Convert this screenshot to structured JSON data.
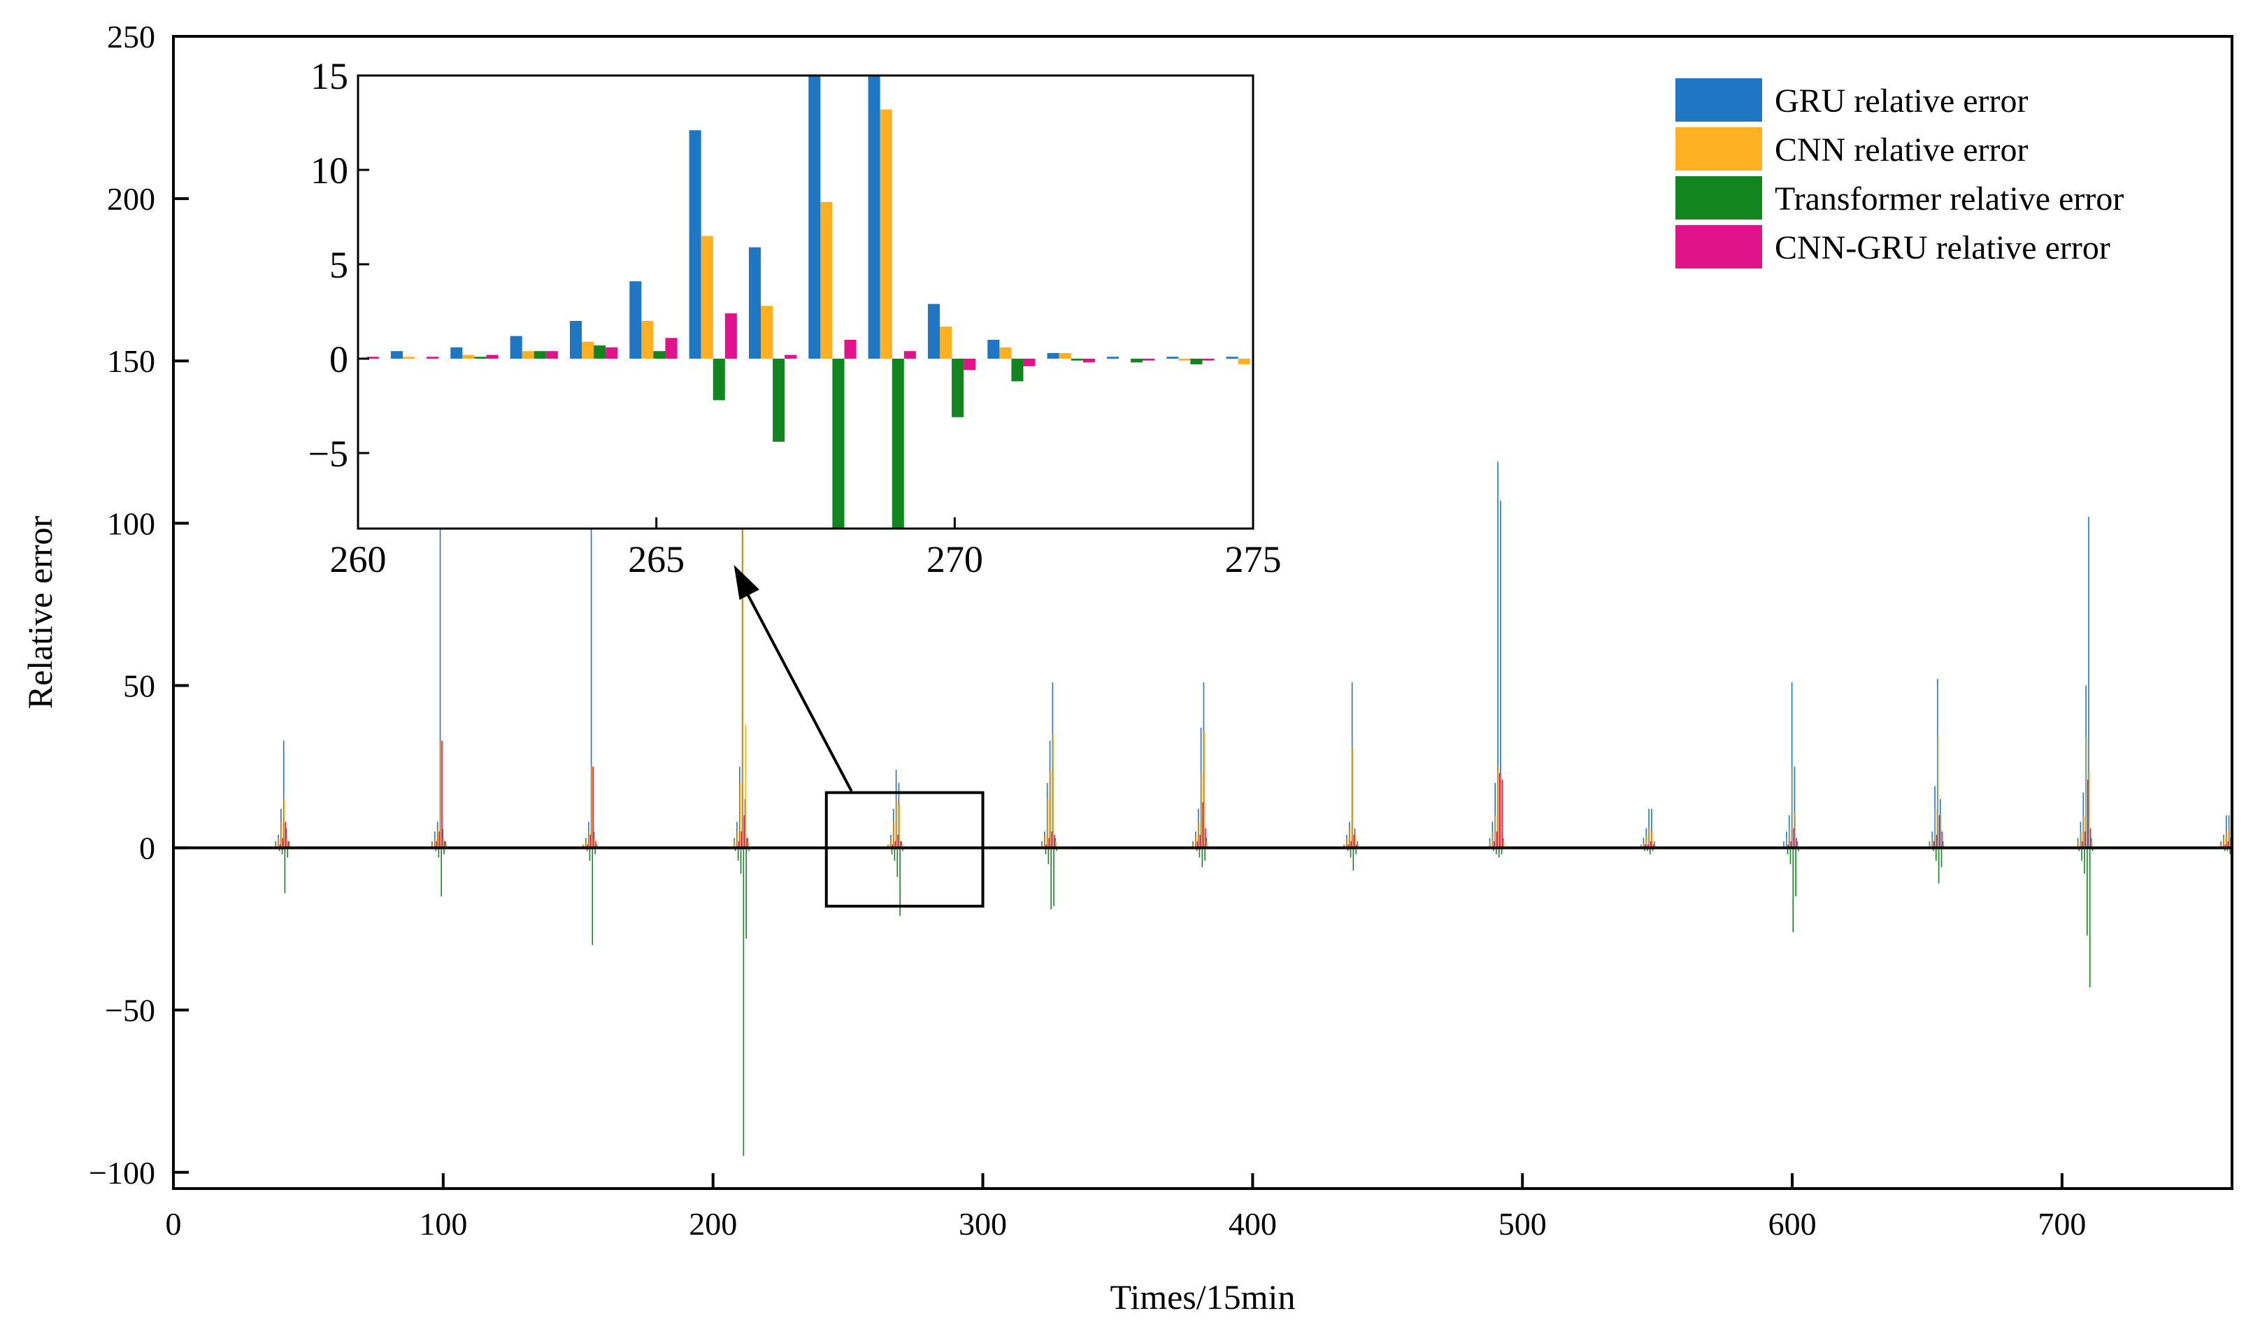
{
  "chart_data": [
    {
      "type": "bar",
      "role": "main",
      "xlabel": "Times/15min",
      "ylabel": "Relative error",
      "xlim": [
        0,
        763
      ],
      "ylim": [
        -105,
        250
      ],
      "xticks": [
        0,
        100,
        200,
        300,
        400,
        500,
        600,
        700
      ],
      "yticks": [
        -100,
        -50,
        0,
        50,
        100,
        150,
        200,
        250
      ],
      "ytick_labels": [
        "−100",
        "−50",
        "0",
        "50",
        "100",
        "150",
        "200",
        "250"
      ],
      "xtick_labels": [
        "0",
        "100",
        "200",
        "300",
        "400",
        "500",
        "600",
        "700"
      ],
      "legend_position": "top-right",
      "zoom_box": {
        "x0": 242,
        "x1": 300,
        "y0": -18,
        "y1": 17
      },
      "series": [
        {
          "name": "GRU relative error",
          "color": "#1f77c4"
        },
        {
          "name": "CNN relative error",
          "color": "#fdb022"
        },
        {
          "name": "Transformer relative error",
          "color": "#12851f"
        },
        {
          "name": "CNN-GRU relative error",
          "color": "#e0138b"
        }
      ],
      "spike_clusters": [
        {
          "center": 41,
          "gru": [
            2,
            4,
            12,
            33,
            6,
            2
          ],
          "cnn": [
            1,
            3,
            8,
            15,
            3,
            1
          ],
          "transformer": [
            0,
            -1,
            -2,
            -14,
            -3,
            0
          ],
          "cnngru": [
            0,
            1,
            3,
            8,
            2,
            0
          ]
        },
        {
          "center": 99,
          "gru": [
            2,
            5,
            8,
            115,
            6,
            2
          ],
          "cnn": [
            1,
            3,
            6,
            33,
            3,
            1
          ],
          "transformer": [
            0,
            -1,
            -3,
            -15,
            -2,
            0
          ],
          "cnngru": [
            0,
            2,
            5,
            33,
            2,
            0
          ]
        },
        {
          "center": 155,
          "gru": [
            1,
            3,
            8,
            105,
            5,
            1
          ],
          "cnn": [
            1,
            2,
            5,
            25,
            3,
            1
          ],
          "transformer": [
            0,
            -1,
            -4,
            -30,
            -2,
            0
          ],
          "cnngru": [
            0,
            1,
            4,
            25,
            2,
            0
          ]
        },
        {
          "center": 211,
          "gru": [
            3,
            8,
            25,
            120,
            15,
            3
          ],
          "cnn": [
            2,
            5,
            20,
            108,
            38,
            2
          ],
          "transformer": [
            -1,
            -4,
            -8,
            -95,
            -28,
            -1
          ],
          "cnngru": [
            0,
            2,
            5,
            10,
            3,
            0
          ]
        },
        {
          "center": 268,
          "gru": [
            1,
            4,
            12,
            24,
            20,
            2
          ],
          "cnn": [
            1,
            3,
            8,
            15,
            13,
            1
          ],
          "transformer": [
            0,
            -2,
            -4,
            -9,
            -21,
            -1
          ],
          "cnngru": [
            0,
            1,
            2,
            4,
            2,
            0
          ]
        },
        {
          "center": 325,
          "gru": [
            2,
            5,
            20,
            33,
            51,
            3
          ],
          "cnn": [
            1,
            4,
            15,
            24,
            35,
            2
          ],
          "transformer": [
            0,
            -2,
            -5,
            -19,
            -18,
            -1
          ],
          "cnngru": [
            0,
            1,
            3,
            5,
            4,
            0
          ]
        },
        {
          "center": 381,
          "gru": [
            2,
            5,
            12,
            37,
            51,
            3
          ],
          "cnn": [
            1,
            4,
            8,
            23,
            36,
            2
          ],
          "transformer": [
            0,
            -1,
            -3,
            -6,
            -4,
            0
          ],
          "cnngru": [
            0,
            2,
            4,
            14,
            6,
            0
          ]
        },
        {
          "center": 437,
          "gru": [
            1,
            4,
            8,
            51,
            6,
            2
          ],
          "cnn": [
            1,
            3,
            6,
            31,
            4,
            1
          ],
          "transformer": [
            0,
            -1,
            -3,
            -7,
            -2,
            0
          ],
          "cnngru": [
            0,
            1,
            2,
            4,
            1,
            0
          ]
        },
        {
          "center": 491,
          "gru": [
            3,
            8,
            20,
            119,
            107,
            3
          ],
          "cnn": [
            2,
            5,
            10,
            25,
            22,
            2
          ],
          "transformer": [
            0,
            -1,
            -2,
            -3,
            -2,
            0
          ],
          "cnngru": [
            0,
            2,
            5,
            23,
            21,
            0
          ]
        },
        {
          "center": 547,
          "gru": [
            1,
            3,
            6,
            12,
            12,
            2
          ],
          "cnn": [
            1,
            2,
            4,
            6,
            5,
            1
          ],
          "transformer": [
            0,
            -1,
            -1,
            -2,
            -1,
            0
          ],
          "cnngru": [
            0,
            1,
            1,
            2,
            1,
            0
          ]
        },
        {
          "center": 600,
          "gru": [
            2,
            5,
            10,
            51,
            25,
            2
          ],
          "cnn": [
            1,
            3,
            6,
            25,
            11,
            1
          ],
          "transformer": [
            0,
            -2,
            -5,
            -26,
            -15,
            -1
          ],
          "cnngru": [
            0,
            1,
            2,
            6,
            3,
            0
          ]
        },
        {
          "center": 654,
          "gru": [
            2,
            5,
            19,
            52,
            15,
            2
          ],
          "cnn": [
            1,
            3,
            12,
            35,
            10,
            1
          ],
          "transformer": [
            0,
            -1,
            -4,
            -11,
            -6,
            0
          ],
          "cnngru": [
            0,
            2,
            4,
            10,
            5,
            0
          ]
        },
        {
          "center": 709,
          "gru": [
            3,
            8,
            17,
            50,
            102,
            3
          ],
          "cnn": [
            2,
            5,
            10,
            34,
            23,
            2
          ],
          "transformer": [
            -1,
            -4,
            -8,
            -27,
            -43,
            -1
          ],
          "cnngru": [
            0,
            2,
            5,
            21,
            6,
            0
          ]
        },
        {
          "center": 762,
          "gru": [
            2,
            4,
            10,
            10,
            0,
            0
          ],
          "cnn": [
            1,
            3,
            5,
            6,
            0,
            0
          ],
          "transformer": [
            0,
            -1,
            -1,
            -2,
            0,
            0
          ],
          "cnngru": [
            0,
            1,
            2,
            3,
            0,
            0
          ]
        }
      ]
    },
    {
      "type": "bar",
      "role": "inset",
      "title": "",
      "xlim": [
        260,
        275
      ],
      "ylim": [
        -9,
        15
      ],
      "xticks": [
        260,
        265,
        270,
        275
      ],
      "yticks": [
        -5,
        0,
        5,
        10,
        15
      ],
      "xtick_labels": [
        "260",
        "265",
        "270",
        "275"
      ],
      "ytick_labels": [
        "−5",
        "0",
        "5",
        "10",
        "15"
      ],
      "categories": [
        260,
        261,
        262,
        263,
        264,
        265,
        266,
        267,
        268,
        269,
        270,
        271,
        272,
        273,
        274,
        275
      ],
      "series": [
        {
          "name": "GRU relative error",
          "values": [
            0.1,
            0.4,
            0.6,
            1.2,
            2.0,
            4.1,
            12.1,
            5.9,
            16.0,
            16.0,
            2.9,
            1.0,
            0.3,
            0.1,
            0.1,
            0.1
          ]
        },
        {
          "name": "CNN relative error",
          "values": [
            0.0,
            0.1,
            0.2,
            0.4,
            0.9,
            2.0,
            6.5,
            2.8,
            8.3,
            13.2,
            1.7,
            0.6,
            0.3,
            0.0,
            -0.1,
            -0.3
          ]
        },
        {
          "name": "Transformer relative error",
          "values": [
            0.0,
            0.0,
            0.1,
            0.4,
            0.7,
            0.4,
            -2.2,
            -4.4,
            -9.5,
            -9.5,
            -3.1,
            -1.2,
            -0.1,
            -0.2,
            -0.3,
            0.0
          ]
        },
        {
          "name": "CNN-GRU relative error",
          "values": [
            0.1,
            0.1,
            0.2,
            0.4,
            0.6,
            1.1,
            2.4,
            0.2,
            1.0,
            0.4,
            -0.6,
            -0.4,
            -0.2,
            -0.1,
            -0.1,
            0.0
          ]
        }
      ]
    }
  ]
}
